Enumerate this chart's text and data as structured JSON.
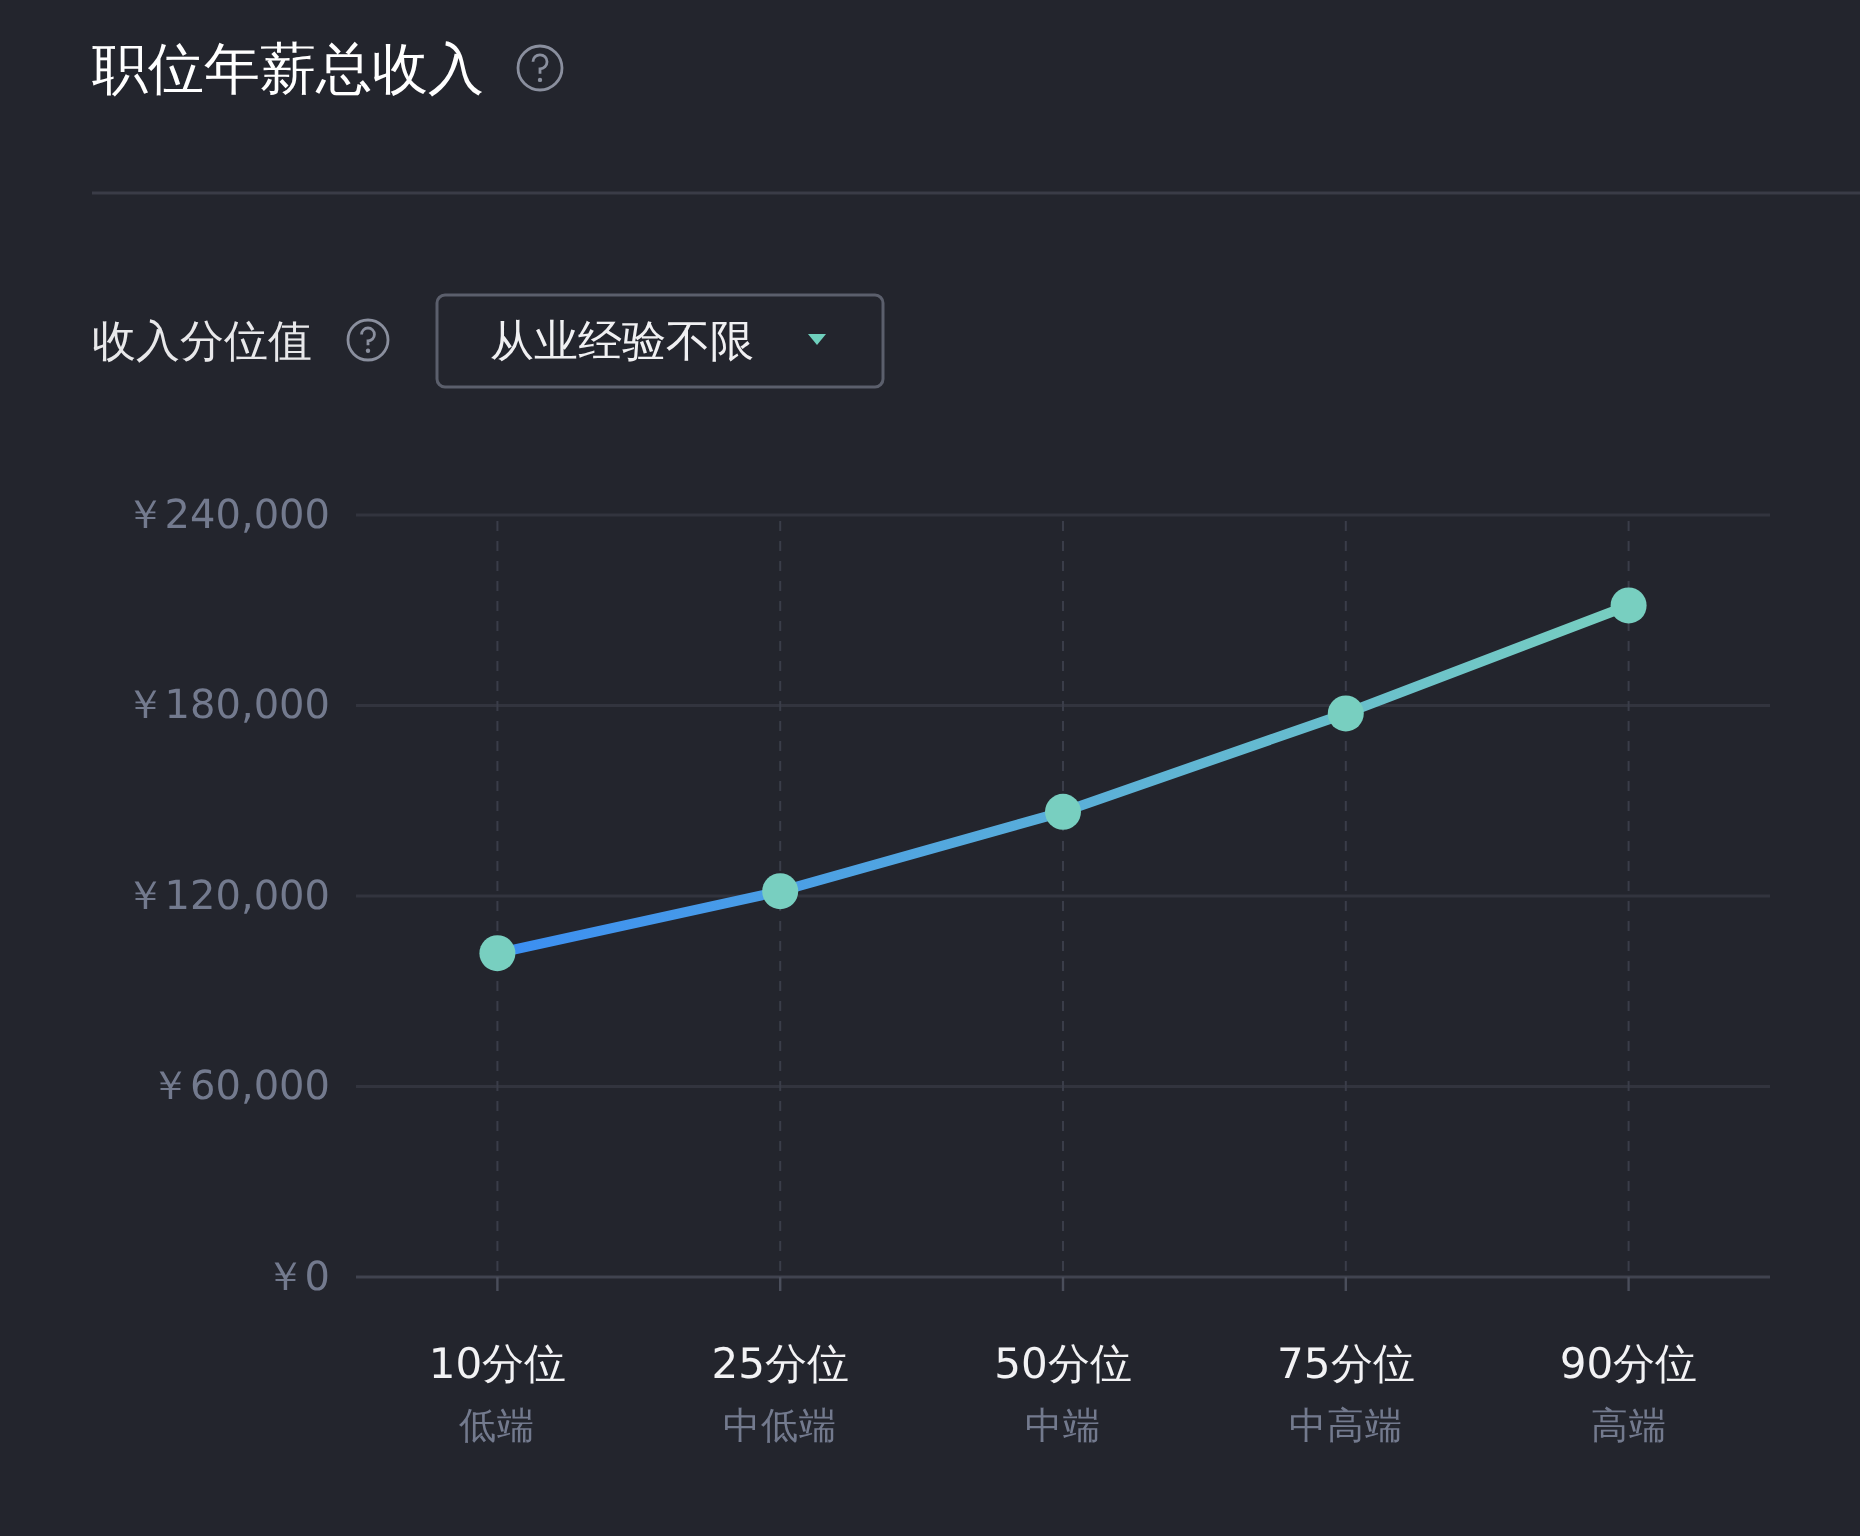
{
  "chart_data": {
    "type": "line",
    "title": "职位年薪总收入",
    "subtitle": "收入分位值",
    "annotations": [
      "从业经验不限"
    ],
    "categories": [
      "10分位低端",
      "25分位中低端",
      "50分位中端",
      "75分位中高端",
      "90分位高端"
    ],
    "series": [
      {
        "color": "#78cfc0",
        "values": [
          102000,
          121500,
          146500,
          177500,
          211500
        ]
      }
    ],
    "ylim": [
      0,
      240000
    ],
    "yticks": [
      {
        "value": 0,
        "label": "￥0"
      },
      {
        "value": 60000,
        "label": "￥60,000"
      },
      {
        "value": 120000,
        "label": "￥120,000"
      },
      {
        "value": 180000,
        "label": "￥180,000"
      },
      {
        "value": 240000,
        "label": "￥240,000"
      }
    ],
    "grid": true,
    "marker": "circle"
  }
}
